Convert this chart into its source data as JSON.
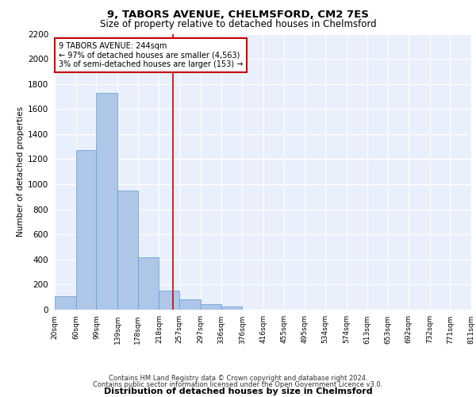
{
  "title1": "9, TABORS AVENUE, CHELMSFORD, CM2 7ES",
  "title2": "Size of property relative to detached houses in Chelmsford",
  "xlabel": "Distribution of detached houses by size in Chelmsford",
  "ylabel": "Number of detached properties",
  "footnote1": "Contains HM Land Registry data © Crown copyright and database right 2024.",
  "footnote2": "Contains public sector information licensed under the Open Government Licence v3.0.",
  "annotation_line1": "9 TABORS AVENUE: 244sqm",
  "annotation_line2": "← 97% of detached houses are smaller (4,563)",
  "annotation_line3": "3% of semi-detached houses are larger (153) →",
  "property_size": 244,
  "bin_edges": [
    20,
    60,
    99,
    139,
    178,
    218,
    257,
    297,
    336,
    376,
    416,
    455,
    495,
    534,
    574,
    613,
    653,
    692,
    732,
    771,
    811
  ],
  "bar_heights": [
    110,
    1270,
    1730,
    950,
    415,
    155,
    80,
    45,
    25,
    0,
    0,
    0,
    0,
    0,
    0,
    0,
    0,
    0,
    0,
    0
  ],
  "bar_color": "#aec6e8",
  "bar_edge_color": "#5a9fd4",
  "vline_color": "#cc0000",
  "vline_x": 244,
  "ylim": [
    0,
    2200
  ],
  "yticks": [
    0,
    200,
    400,
    600,
    800,
    1000,
    1200,
    1400,
    1600,
    1800,
    2000,
    2200
  ],
  "background_color": "#eaf0fb",
  "grid_color": "#ffffff",
  "annotation_box_color": "#cc0000",
  "annotation_text_color": "#000000",
  "title1_fontsize": 9.5,
  "title2_fontsize": 8.5,
  "ylabel_fontsize": 7.5,
  "xlabel_fontsize": 8.0,
  "footnote_fontsize": 6.0,
  "ytick_fontsize": 7.5,
  "xtick_fontsize": 6.5,
  "annot_fontsize": 7.0
}
